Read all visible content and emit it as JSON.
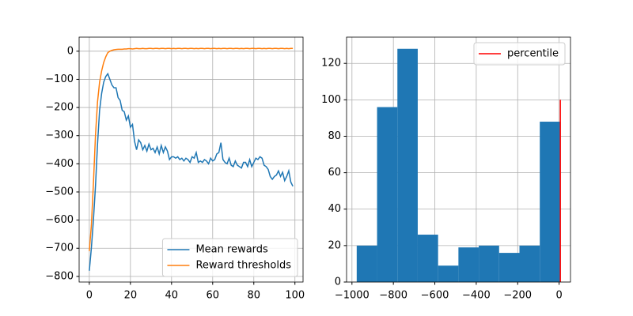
{
  "chart_data": [
    {
      "type": "line",
      "xlim": [
        -4.95,
        103.95
      ],
      "ylim": [
        -820,
        50
      ],
      "xticks": [
        0,
        20,
        40,
        60,
        80,
        100
      ],
      "yticks": [
        {
          "value": -800,
          "label": "−800"
        },
        {
          "value": -700,
          "label": "−700"
        },
        {
          "value": -600,
          "label": "−600"
        },
        {
          "value": -500,
          "label": "−500"
        },
        {
          "value": -400,
          "label": "−400"
        },
        {
          "value": -300,
          "label": "−300"
        },
        {
          "value": -200,
          "label": "−200"
        },
        {
          "value": -100,
          "label": "−100"
        },
        0
      ],
      "grid": true,
      "legend": "lower right",
      "x": [
        0,
        1,
        2,
        3,
        4,
        5,
        6,
        7,
        8,
        9,
        10,
        11,
        12,
        13,
        14,
        15,
        16,
        17,
        18,
        19,
        20,
        21,
        22,
        23,
        24,
        25,
        26,
        27,
        28,
        29,
        30,
        31,
        32,
        33,
        34,
        35,
        36,
        37,
        38,
        39,
        40,
        41,
        42,
        43,
        44,
        45,
        46,
        47,
        48,
        49,
        50,
        51,
        52,
        53,
        54,
        55,
        56,
        57,
        58,
        59,
        60,
        61,
        62,
        63,
        64,
        65,
        66,
        67,
        68,
        69,
        70,
        71,
        72,
        73,
        74,
        75,
        76,
        77,
        78,
        79,
        80,
        81,
        82,
        83,
        84,
        85,
        86,
        87,
        88,
        89,
        90,
        91,
        92,
        93,
        94,
        95,
        96,
        97,
        98,
        99
      ],
      "series": [
        {
          "name": "Mean rewards",
          "color": "#1f77b4",
          "values": [
            -780,
            -700,
            -600,
            -480,
            -330,
            -210,
            -150,
            -110,
            -90,
            -80,
            -100,
            -120,
            -130,
            -130,
            -165,
            -175,
            -210,
            -215,
            -245,
            -230,
            -270,
            -260,
            -320,
            -350,
            -315,
            -325,
            -350,
            -335,
            -355,
            -330,
            -350,
            -345,
            -360,
            -340,
            -365,
            -335,
            -360,
            -340,
            -355,
            -385,
            -375,
            -375,
            -380,
            -375,
            -385,
            -380,
            -390,
            -380,
            -385,
            -395,
            -375,
            -380,
            -360,
            -395,
            -390,
            -395,
            -385,
            -390,
            -400,
            -380,
            -390,
            -385,
            -365,
            -360,
            -325,
            -385,
            -395,
            -400,
            -380,
            -405,
            -410,
            -390,
            -405,
            -410,
            -415,
            -395,
            -395,
            -410,
            -385,
            -410,
            -395,
            -380,
            -385,
            -375,
            -380,
            -405,
            -410,
            -420,
            -445,
            -455,
            -445,
            -440,
            -425,
            -445,
            -430,
            -460,
            -445,
            -425,
            -465,
            -480
          ]
        },
        {
          "name": "Reward thresholds",
          "color": "#ff7f0e",
          "values": [
            -710,
            -620,
            -470,
            -300,
            -180,
            -110,
            -70,
            -40,
            -20,
            -5,
            0,
            3,
            5,
            6,
            7,
            7,
            7,
            8,
            8,
            9,
            9,
            8,
            9,
            10,
            9,
            9,
            10,
            9,
            9,
            10,
            10,
            9,
            10,
            10,
            9,
            10,
            10,
            9,
            10,
            10,
            9,
            10,
            9,
            10,
            10,
            9,
            10,
            10,
            9,
            10,
            10,
            9,
            10,
            9,
            10,
            10,
            9,
            10,
            10,
            9,
            10,
            10,
            9,
            10,
            9,
            10,
            10,
            9,
            10,
            10,
            9,
            10,
            10,
            9,
            10,
            9,
            10,
            10,
            9,
            10,
            10,
            9,
            10,
            10,
            9,
            10,
            9,
            10,
            10,
            9,
            10,
            10,
            9,
            10,
            10,
            9,
            10,
            9,
            10,
            10
          ]
        }
      ]
    },
    {
      "type": "histogram",
      "xlim": [
        -1026,
        55
      ],
      "ylim": [
        0,
        134.4
      ],
      "xticks": [
        {
          "value": -1000,
          "label": "−1000"
        },
        {
          "value": -800,
          "label": "−800"
        },
        {
          "value": -600,
          "label": "−600"
        },
        {
          "value": -400,
          "label": "−400"
        },
        {
          "value": -200,
          "label": "−200"
        },
        0
      ],
      "yticks": [
        0,
        20,
        40,
        60,
        80,
        100,
        120
      ],
      "grid": true,
      "legend": "upper right",
      "color": "#1f77b4",
      "bins": [
        -977,
        -878.8,
        -780.6,
        -682.4,
        -584.2,
        -486,
        -387.8,
        -289.6,
        -191.4,
        -93.2,
        5
      ],
      "counts": [
        20,
        96,
        128,
        26,
        9,
        19,
        20,
        16,
        20,
        88
      ],
      "vlines": [
        {
          "name": "percentile",
          "color": "#ff0000",
          "x": 6,
          "y": [
            0,
            100
          ]
        }
      ]
    }
  ]
}
